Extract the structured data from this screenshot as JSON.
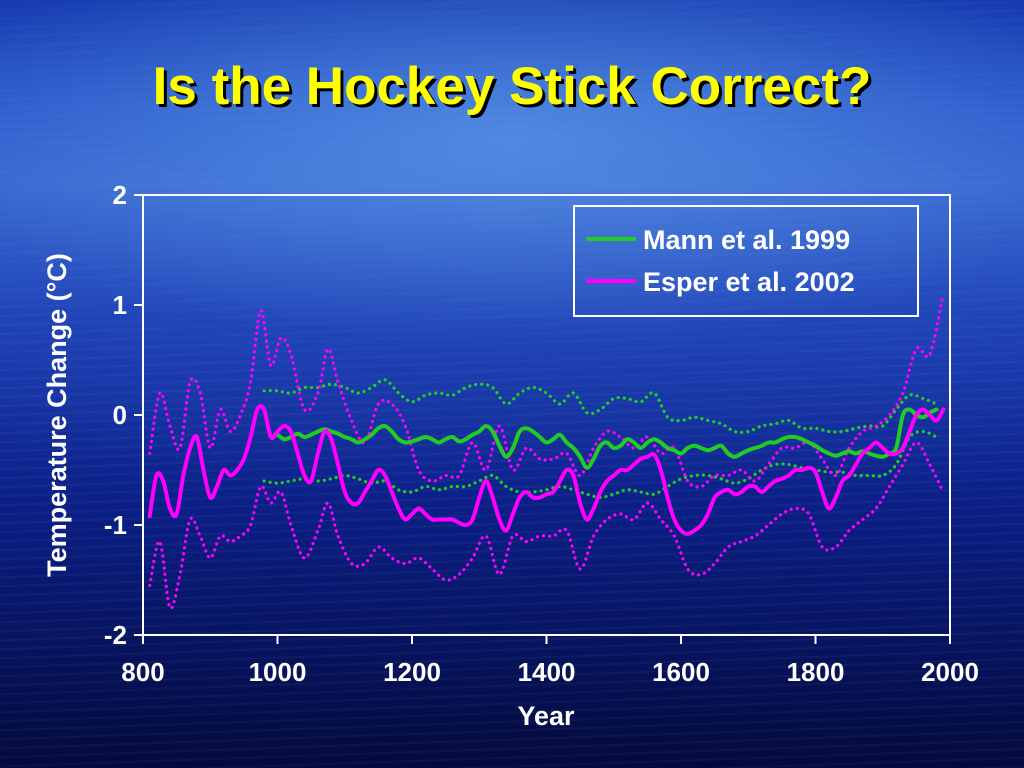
{
  "slide": {
    "title": "Is the Hockey Stick Correct?"
  },
  "chart_data": {
    "type": "line",
    "xlabel": "Year",
    "ylabel": "Temperature Change (°C)",
    "xlim": [
      800,
      2000
    ],
    "ylim": [
      -2,
      2
    ],
    "x_ticks": [
      800,
      1000,
      1200,
      1400,
      1600,
      1800,
      2000
    ],
    "y_ticks": [
      2,
      1,
      0,
      -1,
      -2
    ],
    "legend_position": "top-right",
    "grid": false,
    "colors": {
      "mann": "#22cc22",
      "esper": "#ff00ff",
      "axis": "#ffffff"
    },
    "series": [
      {
        "name": "Mann et al. 1999",
        "color": "#22cc22",
        "line_style": "solid",
        "x": [
          1000,
          1010,
          1020,
          1030,
          1040,
          1050,
          1060,
          1070,
          1080,
          1090,
          1100,
          1110,
          1120,
          1130,
          1140,
          1150,
          1160,
          1170,
          1180,
          1190,
          1200,
          1210,
          1220,
          1230,
          1240,
          1250,
          1260,
          1270,
          1280,
          1290,
          1300,
          1310,
          1320,
          1330,
          1340,
          1350,
          1360,
          1370,
          1380,
          1390,
          1400,
          1410,
          1420,
          1430,
          1440,
          1450,
          1460,
          1470,
          1480,
          1490,
          1500,
          1510,
          1520,
          1530,
          1540,
          1550,
          1560,
          1570,
          1580,
          1590,
          1600,
          1610,
          1620,
          1630,
          1640,
          1650,
          1660,
          1670,
          1680,
          1690,
          1700,
          1710,
          1720,
          1730,
          1740,
          1750,
          1760,
          1770,
          1780,
          1790,
          1800,
          1810,
          1820,
          1830,
          1840,
          1850,
          1860,
          1870,
          1880,
          1890,
          1900,
          1910,
          1920,
          1930,
          1940,
          1950,
          1960,
          1970,
          1980
        ],
        "y": [
          -0.18,
          -0.22,
          -0.2,
          -0.17,
          -0.2,
          -0.18,
          -0.15,
          -0.13,
          -0.15,
          -0.17,
          -0.2,
          -0.22,
          -0.25,
          -0.22,
          -0.18,
          -0.12,
          -0.1,
          -0.15,
          -0.22,
          -0.25,
          -0.24,
          -0.22,
          -0.2,
          -0.22,
          -0.25,
          -0.22,
          -0.2,
          -0.24,
          -0.22,
          -0.18,
          -0.15,
          -0.1,
          -0.15,
          -0.28,
          -0.38,
          -0.3,
          -0.15,
          -0.12,
          -0.15,
          -0.2,
          -0.25,
          -0.22,
          -0.18,
          -0.25,
          -0.3,
          -0.38,
          -0.48,
          -0.4,
          -0.28,
          -0.25,
          -0.3,
          -0.28,
          -0.22,
          -0.25,
          -0.3,
          -0.25,
          -0.22,
          -0.25,
          -0.3,
          -0.32,
          -0.35,
          -0.3,
          -0.28,
          -0.3,
          -0.32,
          -0.3,
          -0.28,
          -0.35,
          -0.38,
          -0.35,
          -0.32,
          -0.3,
          -0.28,
          -0.25,
          -0.25,
          -0.22,
          -0.2,
          -0.2,
          -0.22,
          -0.25,
          -0.28,
          -0.32,
          -0.35,
          -0.37,
          -0.35,
          -0.33,
          -0.35,
          -0.33,
          -0.35,
          -0.37,
          -0.38,
          -0.35,
          -0.3,
          0.0,
          0.05,
          0.0,
          -0.02,
          0.02,
          0.05
        ]
      },
      {
        "name": "Esper et al. 2002",
        "color": "#ff00ff",
        "line_style": "solid",
        "x": [
          810,
          820,
          830,
          840,
          850,
          860,
          870,
          880,
          890,
          900,
          910,
          920,
          930,
          940,
          950,
          960,
          970,
          980,
          990,
          1000,
          1010,
          1020,
          1030,
          1040,
          1050,
          1060,
          1070,
          1080,
          1090,
          1100,
          1110,
          1120,
          1130,
          1140,
          1150,
          1160,
          1170,
          1180,
          1190,
          1200,
          1210,
          1220,
          1230,
          1240,
          1250,
          1260,
          1270,
          1280,
          1290,
          1300,
          1310,
          1320,
          1330,
          1340,
          1350,
          1360,
          1370,
          1380,
          1390,
          1400,
          1410,
          1420,
          1430,
          1440,
          1450,
          1460,
          1470,
          1480,
          1490,
          1500,
          1510,
          1520,
          1530,
          1540,
          1550,
          1560,
          1570,
          1580,
          1590,
          1600,
          1610,
          1620,
          1630,
          1640,
          1650,
          1660,
          1670,
          1680,
          1690,
          1700,
          1710,
          1720,
          1730,
          1740,
          1750,
          1760,
          1770,
          1780,
          1790,
          1800,
          1810,
          1820,
          1830,
          1840,
          1850,
          1860,
          1870,
          1880,
          1890,
          1900,
          1910,
          1920,
          1930,
          1940,
          1950,
          1960,
          1970,
          1980,
          1990
        ],
        "y": [
          -0.92,
          -0.55,
          -0.6,
          -0.85,
          -0.9,
          -0.55,
          -0.3,
          -0.2,
          -0.5,
          -0.75,
          -0.65,
          -0.5,
          -0.55,
          -0.5,
          -0.4,
          -0.2,
          0.05,
          0.05,
          -0.2,
          -0.15,
          -0.1,
          -0.15,
          -0.35,
          -0.55,
          -0.6,
          -0.35,
          -0.15,
          -0.22,
          -0.45,
          -0.7,
          -0.8,
          -0.8,
          -0.7,
          -0.6,
          -0.5,
          -0.55,
          -0.7,
          -0.85,
          -0.95,
          -0.9,
          -0.85,
          -0.9,
          -0.95,
          -0.95,
          -0.95,
          -0.95,
          -0.98,
          -1.0,
          -0.95,
          -0.75,
          -0.6,
          -0.75,
          -0.95,
          -1.05,
          -0.9,
          -0.75,
          -0.7,
          -0.75,
          -0.75,
          -0.72,
          -0.7,
          -0.6,
          -0.5,
          -0.55,
          -0.8,
          -0.95,
          -0.85,
          -0.7,
          -0.6,
          -0.55,
          -0.5,
          -0.5,
          -0.45,
          -0.4,
          -0.38,
          -0.36,
          -0.5,
          -0.75,
          -0.95,
          -1.05,
          -1.08,
          -1.05,
          -1.0,
          -0.9,
          -0.75,
          -0.7,
          -0.68,
          -0.72,
          -0.7,
          -0.65,
          -0.65,
          -0.7,
          -0.65,
          -0.6,
          -0.58,
          -0.55,
          -0.5,
          -0.5,
          -0.48,
          -0.52,
          -0.7,
          -0.85,
          -0.75,
          -0.6,
          -0.55,
          -0.45,
          -0.35,
          -0.3,
          -0.25,
          -0.3,
          -0.35,
          -0.35,
          -0.3,
          -0.15,
          0.0,
          0.05,
          0.0,
          -0.05,
          0.05
        ]
      },
      {
        "name": "",
        "color": "#22cc22",
        "line_style": "dotted",
        "x": [
          980,
          1000,
          1020,
          1040,
          1060,
          1080,
          1100,
          1120,
          1140,
          1160,
          1180,
          1200,
          1220,
          1240,
          1260,
          1280,
          1300,
          1320,
          1340,
          1360,
          1380,
          1400,
          1420,
          1440,
          1460,
          1480,
          1500,
          1520,
          1540,
          1560,
          1580,
          1600,
          1620,
          1640,
          1660,
          1680,
          1700,
          1720,
          1740,
          1760,
          1780,
          1800,
          1820,
          1840,
          1860,
          1880,
          1900,
          1920,
          1940,
          1960,
          1980
        ],
        "y": [
          0.22,
          0.22,
          0.2,
          0.25,
          0.25,
          0.28,
          0.25,
          0.2,
          0.25,
          0.32,
          0.2,
          0.12,
          0.18,
          0.2,
          0.18,
          0.25,
          0.28,
          0.25,
          0.1,
          0.2,
          0.25,
          0.2,
          0.1,
          0.2,
          0.02,
          0.05,
          0.15,
          0.15,
          0.12,
          0.2,
          -0.02,
          -0.05,
          -0.02,
          -0.05,
          -0.08,
          -0.15,
          -0.15,
          -0.1,
          -0.08,
          -0.05,
          -0.12,
          -0.12,
          -0.15,
          -0.15,
          -0.12,
          -0.1,
          -0.1,
          0.05,
          0.18,
          0.15,
          0.1
        ]
      },
      {
        "name": "",
        "color": "#22cc22",
        "line_style": "dotted",
        "x": [
          980,
          1000,
          1020,
          1040,
          1060,
          1080,
          1100,
          1120,
          1140,
          1160,
          1180,
          1200,
          1220,
          1240,
          1260,
          1280,
          1300,
          1320,
          1340,
          1360,
          1380,
          1400,
          1420,
          1440,
          1460,
          1480,
          1500,
          1520,
          1540,
          1560,
          1580,
          1600,
          1620,
          1640,
          1660,
          1680,
          1700,
          1720,
          1740,
          1760,
          1780,
          1800,
          1820,
          1840,
          1860,
          1880,
          1900,
          1920,
          1940,
          1960,
          1980
        ],
        "y": [
          -0.6,
          -0.62,
          -0.6,
          -0.58,
          -0.6,
          -0.58,
          -0.55,
          -0.58,
          -0.62,
          -0.6,
          -0.68,
          -0.7,
          -0.65,
          -0.68,
          -0.65,
          -0.65,
          -0.6,
          -0.55,
          -0.65,
          -0.7,
          -0.7,
          -0.68,
          -0.65,
          -0.68,
          -0.72,
          -0.75,
          -0.72,
          -0.68,
          -0.7,
          -0.72,
          -0.65,
          -0.58,
          -0.55,
          -0.55,
          -0.58,
          -0.62,
          -0.58,
          -0.5,
          -0.45,
          -0.45,
          -0.48,
          -0.5,
          -0.52,
          -0.52,
          -0.55,
          -0.55,
          -0.55,
          -0.45,
          -0.2,
          -0.15,
          -0.2
        ]
      },
      {
        "name": "",
        "color": "#ff00ff",
        "line_style": "dotted",
        "x": [
          810,
          825,
          840,
          855,
          870,
          885,
          900,
          915,
          930,
          945,
          960,
          975,
          990,
          1005,
          1020,
          1040,
          1060,
          1075,
          1090,
          1110,
          1130,
          1150,
          1170,
          1190,
          1210,
          1230,
          1250,
          1270,
          1290,
          1310,
          1330,
          1350,
          1370,
          1390,
          1410,
          1430,
          1450,
          1470,
          1490,
          1510,
          1530,
          1550,
          1570,
          1590,
          1610,
          1630,
          1650,
          1670,
          1690,
          1710,
          1730,
          1750,
          1770,
          1790,
          1810,
          1830,
          1850,
          1870,
          1890,
          1910,
          1930,
          1950,
          1970,
          1990
        ],
        "y": [
          -0.35,
          0.2,
          -0.1,
          -0.3,
          0.3,
          0.2,
          -0.3,
          0.05,
          -0.15,
          0.0,
          0.3,
          0.95,
          0.45,
          0.7,
          0.55,
          0.05,
          0.2,
          0.6,
          0.3,
          -0.05,
          -0.25,
          0.1,
          0.1,
          -0.1,
          -0.5,
          -0.6,
          -0.55,
          -0.55,
          -0.25,
          -0.5,
          -0.1,
          -0.5,
          -0.3,
          -0.4,
          -0.4,
          -0.35,
          -0.55,
          -0.3,
          -0.15,
          -0.2,
          -0.3,
          -0.2,
          -0.35,
          -0.3,
          -0.6,
          -0.65,
          -0.55,
          -0.55,
          -0.5,
          -0.6,
          -0.45,
          -0.3,
          -0.3,
          -0.25,
          -0.4,
          -0.55,
          -0.3,
          -0.15,
          -0.1,
          0.0,
          0.2,
          0.6,
          0.55,
          1.1
        ]
      },
      {
        "name": "",
        "color": "#ff00ff",
        "line_style": "dotted",
        "x": [
          810,
          825,
          840,
          855,
          870,
          885,
          900,
          915,
          930,
          945,
          960,
          975,
          990,
          1005,
          1020,
          1040,
          1060,
          1075,
          1090,
          1110,
          1130,
          1150,
          1170,
          1190,
          1210,
          1230,
          1250,
          1270,
          1290,
          1310,
          1330,
          1350,
          1370,
          1390,
          1410,
          1430,
          1450,
          1470,
          1490,
          1510,
          1530,
          1550,
          1570,
          1590,
          1610,
          1630,
          1650,
          1670,
          1690,
          1710,
          1730,
          1750,
          1770,
          1790,
          1810,
          1830,
          1850,
          1870,
          1890,
          1910,
          1930,
          1950,
          1970,
          1990
        ],
        "y": [
          -1.55,
          -1.15,
          -1.75,
          -1.45,
          -0.95,
          -1.1,
          -1.3,
          -1.1,
          -1.15,
          -1.1,
          -1.0,
          -0.65,
          -0.8,
          -0.7,
          -1.0,
          -1.3,
          -1.05,
          -0.8,
          -1.1,
          -1.35,
          -1.35,
          -1.2,
          -1.3,
          -1.35,
          -1.3,
          -1.4,
          -1.5,
          -1.45,
          -1.3,
          -1.1,
          -1.45,
          -1.1,
          -1.15,
          -1.1,
          -1.1,
          -1.05,
          -1.4,
          -1.1,
          -0.95,
          -0.9,
          -0.95,
          -0.8,
          -0.95,
          -1.1,
          -1.4,
          -1.45,
          -1.35,
          -1.2,
          -1.15,
          -1.1,
          -1.0,
          -0.9,
          -0.85,
          -0.9,
          -1.2,
          -1.2,
          -1.05,
          -0.95,
          -0.85,
          -0.65,
          -0.45,
          -0.25,
          -0.45,
          -0.7
        ]
      }
    ]
  }
}
